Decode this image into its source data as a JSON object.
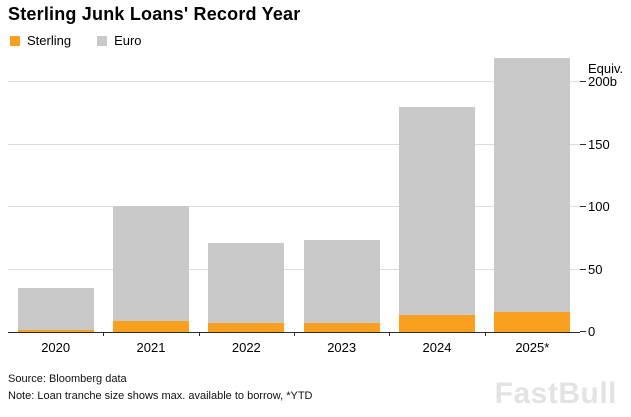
{
  "title": "Sterling Junk Loans' Record Year",
  "legend": {
    "items": [
      {
        "label": "Sterling",
        "color": "#f9a01e"
      },
      {
        "label": "Euro",
        "color": "#c9c9c9"
      }
    ]
  },
  "chart_data": {
    "type": "bar",
    "stacked": true,
    "title": "Sterling Junk Loans' Record Year",
    "categories": [
      "2020",
      "2021",
      "2022",
      "2023",
      "2024",
      "2025*"
    ],
    "series": [
      {
        "name": "Sterling",
        "color": "#f9a01e",
        "values": [
          2,
          9,
          7,
          7,
          14,
          16
        ]
      },
      {
        "name": "Euro",
        "color": "#c9c9c9",
        "values": [
          33,
          92,
          64,
          67,
          166,
          204
        ]
      }
    ],
    "totals": [
      35,
      101,
      71,
      74,
      180,
      220
    ],
    "ylim": [
      0,
      222
    ],
    "yticks": [
      {
        "value": 0,
        "label": "0"
      },
      {
        "value": 50,
        "label": "50"
      },
      {
        "value": 100,
        "label": "100"
      },
      {
        "value": 150,
        "label": "150"
      },
      {
        "value": 200,
        "label": "200b",
        "prefix": "Equiv."
      }
    ],
    "grid": true,
    "legend_position": "top-left",
    "xlabel": "",
    "ylabel": "Equiv. (billions)"
  },
  "footer": {
    "source": "Source: Bloomberg data",
    "note": "Note: Loan tranche size shows max. available to borrow, *YTD"
  },
  "watermark": "FastBull"
}
